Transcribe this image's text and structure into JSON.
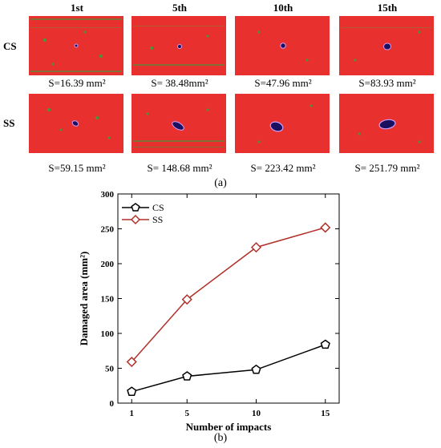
{
  "panel_a": {
    "label": "(a)",
    "columns": [
      "1st",
      "5th",
      "10th",
      "15th"
    ],
    "rows": [
      {
        "name": "CS",
        "captions": [
          "S=16.39 mm²",
          "S= 38.48mm²",
          "S=47.96 mm²",
          "S=83.93 mm²"
        ],
        "damage_area_mm2": [
          16.39,
          38.48,
          47.96,
          83.93
        ]
      },
      {
        "name": "SS",
        "captions": [
          "S=59.15 mm²",
          "S= 148.68 mm²",
          "S= 223.42 mm²",
          "S= 251.79 mm²"
        ],
        "damage_area_mm2": [
          59.15,
          148.68,
          223.42,
          251.79
        ]
      }
    ],
    "colors": {
      "background": "#e8302e",
      "green": "#3f9a3a",
      "damage": "#1a1060",
      "damage_edge": "#c9a0ff"
    }
  },
  "panel_b": {
    "label": "(b)"
  },
  "chart_data": {
    "type": "line",
    "x": [
      1,
      5,
      10,
      15
    ],
    "xlabel": "Number of impacts",
    "ylabel": "Damaged area (mm²)",
    "ylim": [
      0,
      300
    ],
    "yticks": [
      0,
      50,
      100,
      150,
      200,
      250,
      300
    ],
    "xticks": [
      1,
      5,
      10,
      15
    ],
    "grid": false,
    "legend_position": "top-left",
    "series": [
      {
        "name": "CS",
        "values": [
          16.39,
          38.48,
          47.96,
          83.93
        ],
        "color": "#000000",
        "marker": "pentagon"
      },
      {
        "name": "SS",
        "values": [
          59.15,
          148.68,
          223.42,
          251.79
        ],
        "color": "#b2302a",
        "marker": "diamond"
      }
    ]
  }
}
